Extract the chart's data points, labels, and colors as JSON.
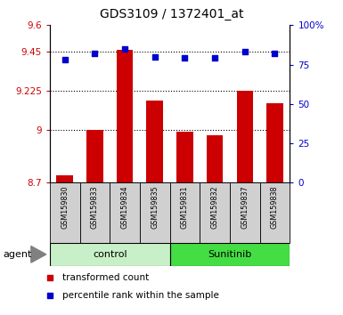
{
  "title": "GDS3109 / 1372401_at",
  "samples": [
    "GSM159830",
    "GSM159833",
    "GSM159834",
    "GSM159835",
    "GSM159831",
    "GSM159832",
    "GSM159837",
    "GSM159838"
  ],
  "bar_values": [
    8.74,
    9.0,
    9.46,
    9.17,
    8.99,
    8.97,
    9.225,
    9.155
  ],
  "dot_values": [
    78,
    82,
    85,
    80,
    79,
    79,
    83,
    82
  ],
  "ylim_left": [
    8.7,
    9.6
  ],
  "ylim_right": [
    0,
    100
  ],
  "yticks_left": [
    8.7,
    9.0,
    9.225,
    9.45,
    9.6
  ],
  "ytick_labels_left": [
    "8.7",
    "9",
    "9.225",
    "9.45",
    "9.6"
  ],
  "yticks_right": [
    0,
    25,
    50,
    75,
    100
  ],
  "ytick_labels_right": [
    "0",
    "25",
    "50",
    "75",
    "100%"
  ],
  "hlines": [
    9.45,
    9.225,
    9.0
  ],
  "bar_color": "#cc0000",
  "dot_color": "#0000cc",
  "control_label": "control",
  "sunitinib_label": "Sunitinib",
  "agent_label": "agent",
  "legend_bar_label": "transformed count",
  "legend_dot_label": "percentile rank within the sample",
  "control_bg": "#c8f0c8",
  "sunitinib_bg": "#44dd44",
  "sample_bg": "#d0d0d0",
  "tick_color_left": "#cc0000",
  "tick_color_right": "#0000cc",
  "base_value": 8.7,
  "n_control": 4,
  "n_sunitinib": 4
}
